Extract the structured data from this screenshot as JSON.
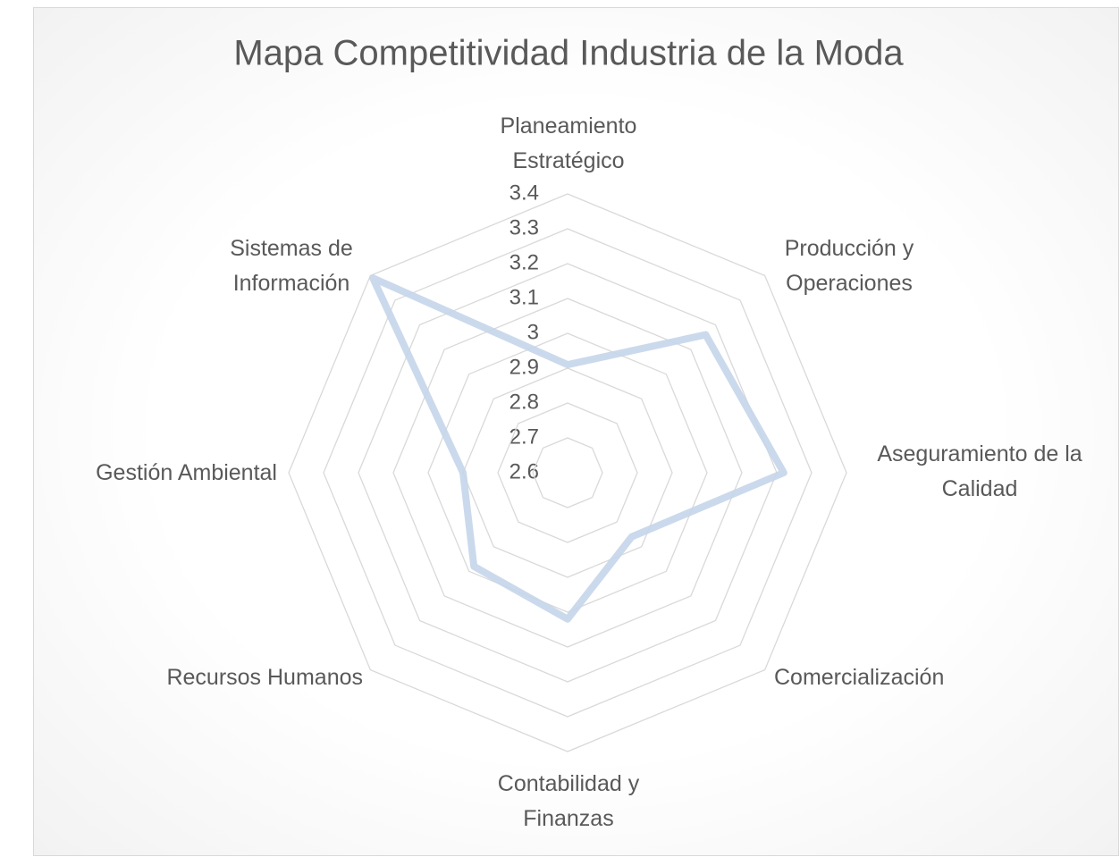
{
  "chart_data": {
    "type": "radar",
    "title": "Mapa Competitividad Industria de la Moda",
    "categories": [
      "Planeamiento Estratégico",
      "Producción y Operaciones",
      "Aseguramiento de la Calidad",
      "Comercialización",
      "Contabilidad y Finanzas",
      "Recursos Humanos",
      "Gestión Ambiental",
      "Sistemas de Información"
    ],
    "values": [
      2.91,
      3.16,
      3.22,
      2.86,
      3.02,
      2.98,
      2.9,
      3.39
    ],
    "color": "#c5d5ea",
    "rlim": [
      2.6,
      3.4
    ],
    "rticks": [
      2.6,
      2.7,
      2.8,
      2.9,
      3,
      3.1,
      3.2,
      3.3,
      3.4
    ],
    "grid": true
  }
}
